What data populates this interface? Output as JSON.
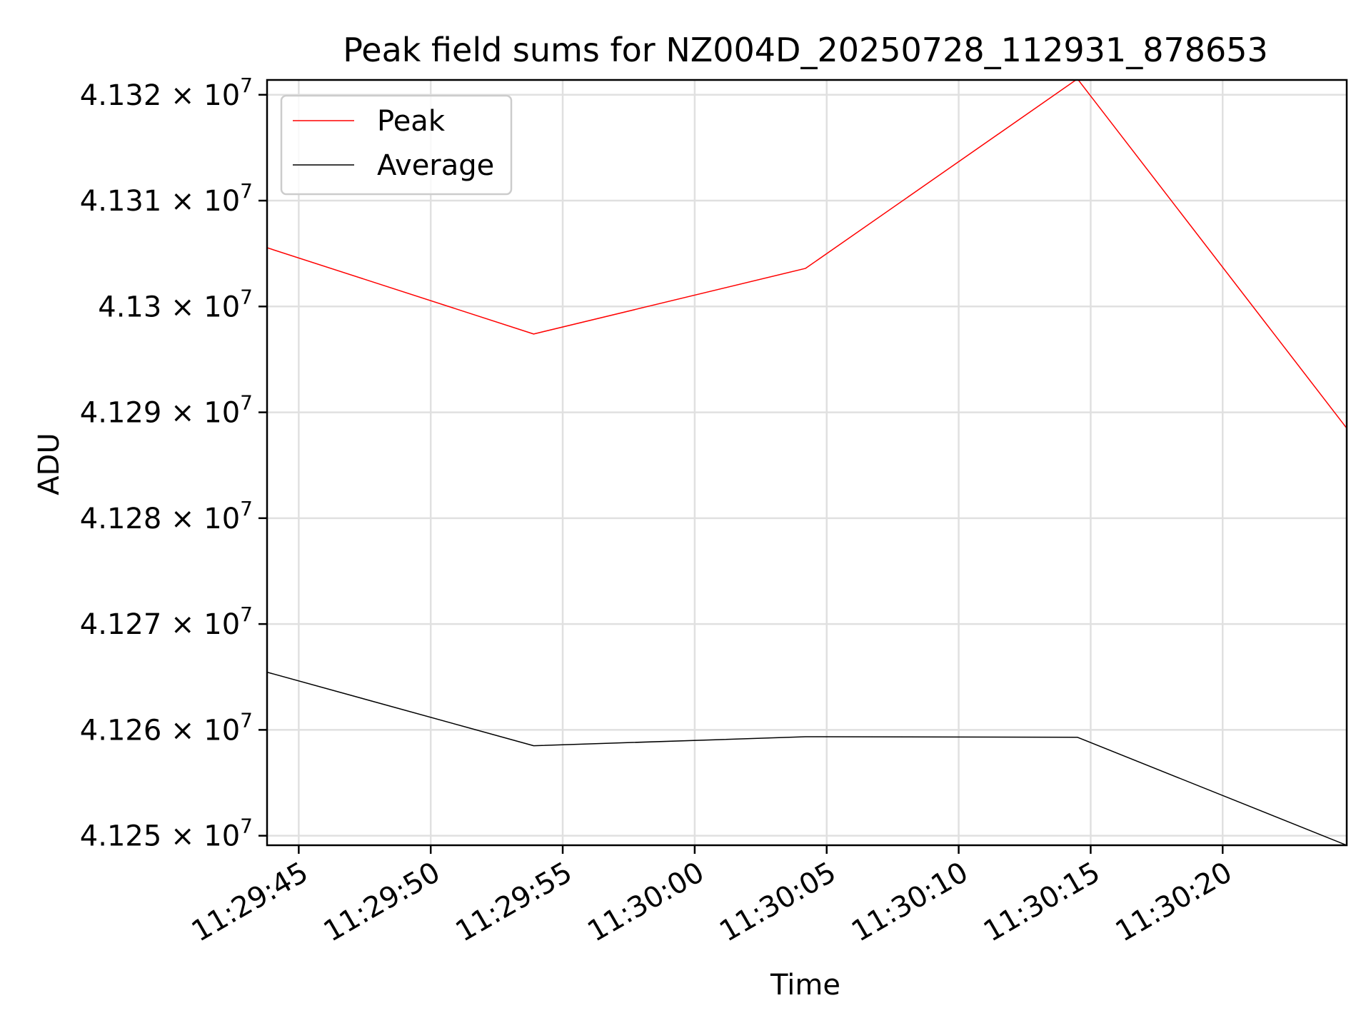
{
  "chart_data": {
    "type": "line",
    "title": "Peak field sums for NZ004D_20250728_112931_878653",
    "xlabel": "Time",
    "ylabel": "ADU",
    "x_ticks": [
      "11:29:45",
      "11:29:50",
      "11:29:55",
      "11:30:00",
      "11:30:05",
      "11:30:10",
      "11:30:15",
      "11:30:20"
    ],
    "y_ticks": [
      {
        "mantissa": "4.125",
        "value": 41250000
      },
      {
        "mantissa": "4.126",
        "value": 41260000
      },
      {
        "mantissa": "4.127",
        "value": 41270000
      },
      {
        "mantissa": "4.128",
        "value": 41280000
      },
      {
        "mantissa": "4.129",
        "value": 41290000
      },
      {
        "mantissa": "4.13",
        "value": 41300000
      },
      {
        "mantissa": "4.131",
        "value": 41310000
      },
      {
        "mantissa": "4.132",
        "value": 41320000
      }
    ],
    "y_exponent_base": "× 10",
    "y_exponent": "7",
    "xlim": [
      "11:29:43.8",
      "11:30:24.7"
    ],
    "ylim": [
      41249100,
      41321400
    ],
    "grid": true,
    "legend_position": "top-left",
    "series": [
      {
        "name": "Peak",
        "color": "#ff0000",
        "x": [
          "11:29:43.8",
          "11:29:53.9",
          "11:30:04.2",
          "11:30:14.5",
          "11:30:24.7"
        ],
        "y": [
          41305550,
          41297400,
          41303600,
          41321500,
          41288500
        ]
      },
      {
        "name": "Average",
        "color": "#000000",
        "x": [
          "11:29:43.8",
          "11:29:53.9",
          "11:30:04.2",
          "11:30:14.5",
          "11:30:24.7"
        ],
        "y": [
          41265450,
          41258500,
          41259350,
          41259300,
          41249100
        ]
      }
    ]
  }
}
